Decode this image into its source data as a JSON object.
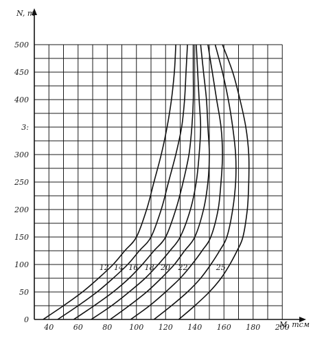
{
  "chart_data": {
    "type": "line",
    "xlabel": "M, тсм",
    "ylabel": "N, т",
    "xlim": [
      30,
      200
    ],
    "ylim": [
      0,
      500
    ],
    "x_ticks": [
      40,
      60,
      80,
      100,
      120,
      140,
      160,
      180,
      200
    ],
    "y_ticks": [
      0,
      50,
      100,
      150,
      200,
      250,
      300,
      350,
      400,
      450,
      500
    ],
    "y_tick_labels": [
      "0",
      "50",
      "100",
      "150",
      "200",
      "250",
      "300",
      "3:",
      "400",
      "450",
      "500"
    ],
    "grid": true,
    "series": [
      {
        "name": "12",
        "x": [
          36,
          50,
          63,
          74,
          84,
          92,
          100,
          107,
          112,
          117,
          121,
          124,
          126,
          127
        ],
        "y": [
          0,
          25,
          50,
          75,
          100,
          125,
          150,
          200,
          250,
          300,
          350,
          400,
          450,
          500
        ]
      },
      {
        "name": "14",
        "x": [
          46,
          60,
          73,
          84,
          94,
          102,
          110,
          117,
          122,
          127,
          131,
          133,
          134,
          135
        ],
        "y": [
          0,
          25,
          50,
          75,
          100,
          125,
          150,
          200,
          250,
          300,
          350,
          400,
          450,
          500
        ]
      },
      {
        "name": "16",
        "x": [
          57,
          71,
          84,
          95,
          104,
          112,
          120,
          127,
          132,
          136,
          138,
          139,
          139,
          139
        ],
        "y": [
          0,
          25,
          50,
          75,
          100,
          125,
          150,
          200,
          250,
          300,
          350,
          400,
          450,
          500
        ]
      },
      {
        "name": "18",
        "x": [
          69,
          83,
          95,
          106,
          115,
          123,
          130,
          137,
          141,
          143,
          144,
          143,
          142,
          141
        ],
        "y": [
          0,
          25,
          50,
          75,
          100,
          125,
          150,
          200,
          250,
          300,
          350,
          400,
          450,
          500
        ]
      },
      {
        "name": "20",
        "x": [
          82,
          95,
          107,
          117,
          126,
          133,
          140,
          146,
          149,
          150,
          149,
          148,
          146,
          144
        ],
        "y": [
          0,
          25,
          50,
          75,
          100,
          125,
          150,
          200,
          250,
          300,
          350,
          400,
          450,
          500
        ]
      },
      {
        "name": "22",
        "x": [
          96,
          109,
          120,
          130,
          138,
          145,
          151,
          156,
          158,
          159,
          158,
          155,
          152,
          149
        ],
        "y": [
          0,
          25,
          50,
          75,
          100,
          125,
          150,
          200,
          250,
          300,
          350,
          400,
          450,
          500
        ]
      },
      {
        "name": "",
        "x": [
          112,
          124,
          135,
          144,
          151,
          157,
          162,
          166,
          168,
          168,
          166,
          163,
          159,
          154
        ],
        "y": [
          0,
          25,
          50,
          75,
          100,
          125,
          150,
          200,
          250,
          300,
          350,
          400,
          450,
          500
        ]
      },
      {
        "name": "25",
        "x": [
          129,
          140,
          150,
          158,
          164,
          169,
          173,
          176,
          177,
          177,
          175,
          171,
          166,
          159
        ],
        "y": [
          0,
          25,
          50,
          75,
          100,
          125,
          150,
          200,
          250,
          300,
          350,
          400,
          450,
          500
        ]
      }
    ]
  }
}
